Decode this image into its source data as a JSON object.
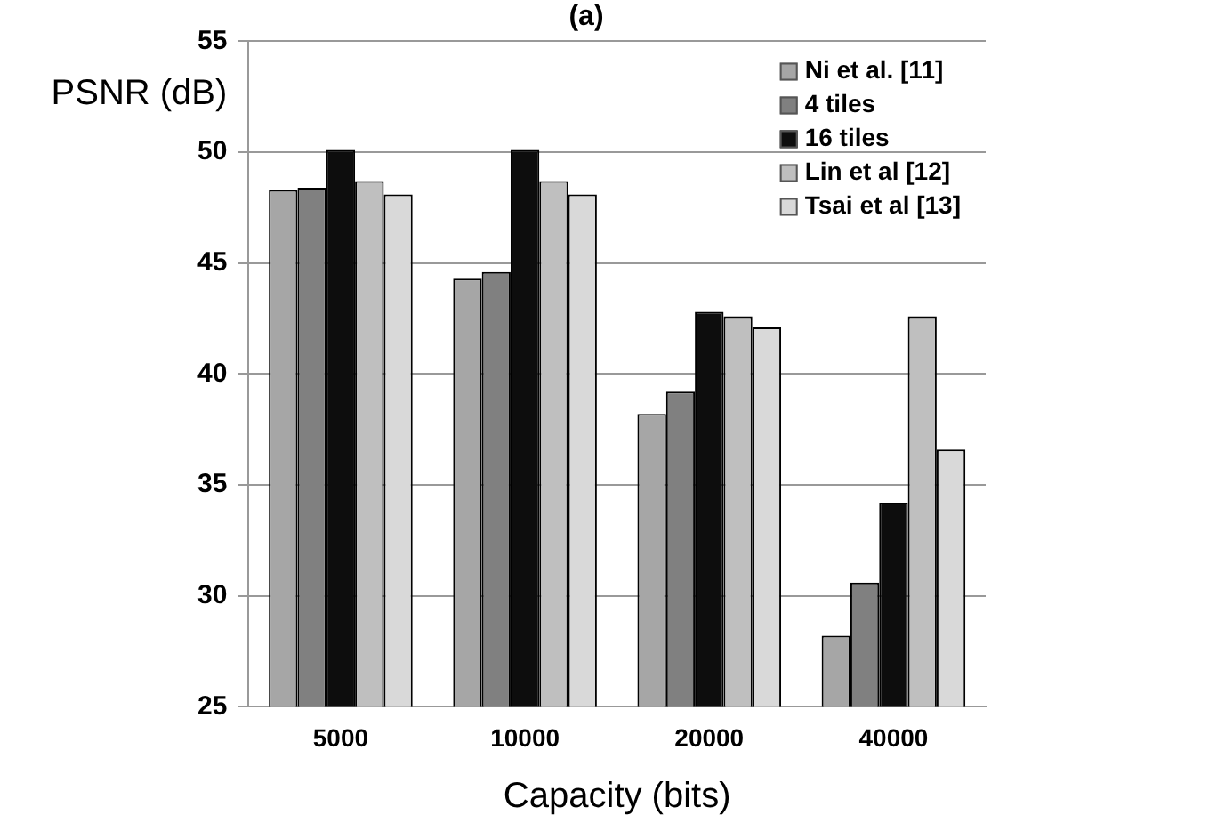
{
  "chart_data": {
    "type": "bar",
    "title": "(a)",
    "xlabel": "Capacity (bits)",
    "ylabel": "PSNR (dB)",
    "categories": [
      "5000",
      "10000",
      "20000",
      "40000"
    ],
    "series": [
      {
        "name": "Ni et al. [11]",
        "color": "#a6a6a6",
        "values": [
          48.3,
          44.3,
          38.2,
          28.2
        ]
      },
      {
        "name": "4 tiles",
        "color": "#808080",
        "values": [
          48.4,
          44.6,
          39.2,
          30.6
        ]
      },
      {
        "name": "16 tiles",
        "color": "#0d0d0d",
        "values": [
          50.1,
          50.1,
          42.8,
          34.2
        ]
      },
      {
        "name": "Lin et al [12]",
        "color": "#bfbfbf",
        "values": [
          48.7,
          48.7,
          42.6,
          42.6
        ]
      },
      {
        "name": "Tsai et al [13]",
        "color": "#d9d9d9",
        "values": [
          48.1,
          48.1,
          42.1,
          36.6
        ]
      }
    ],
    "ylim": [
      25,
      55
    ],
    "yticks": [
      25,
      30,
      35,
      40,
      45,
      50,
      55
    ],
    "grid": "y",
    "legend": "top right"
  }
}
